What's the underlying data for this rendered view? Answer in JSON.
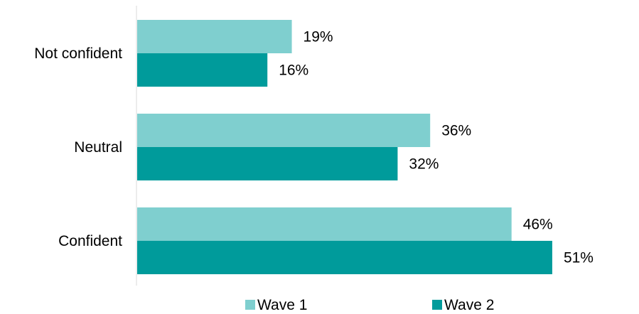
{
  "chart_data": {
    "type": "bar",
    "orientation": "horizontal",
    "categories": [
      "Not confident",
      "Neutral",
      "Confident"
    ],
    "series": [
      {
        "name": "Wave 1",
        "values": [
          19,
          36,
          46
        ],
        "labels": [
          "19%",
          "36%",
          "46%"
        ],
        "color": "#7fcfcf"
      },
      {
        "name": "Wave 2",
        "values": [
          16,
          32,
          51
        ],
        "labels": [
          "16%",
          "32%",
          "51%"
        ],
        "color": "#009b9b"
      }
    ],
    "xlim": [
      0,
      55
    ],
    "grid": false,
    "legend_position": "bottom",
    "axis_color": "#d9d9d9"
  }
}
